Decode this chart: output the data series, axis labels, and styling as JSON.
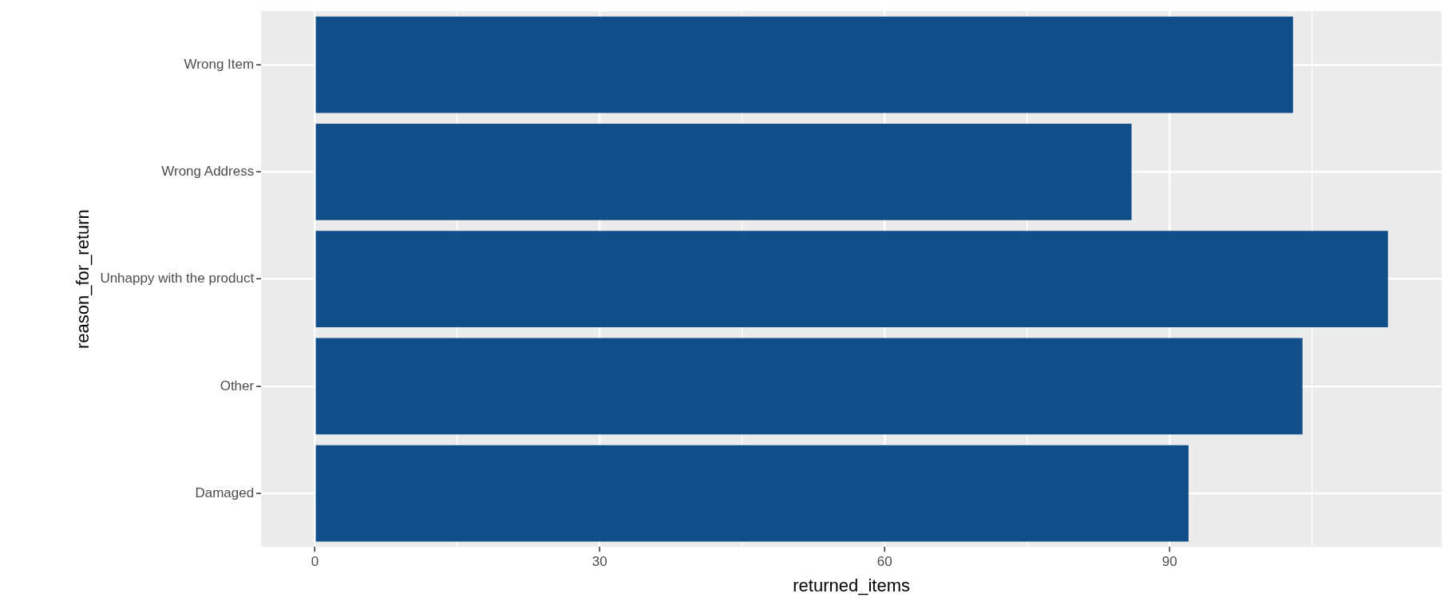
{
  "chart_data": {
    "type": "bar",
    "orientation": "horizontal",
    "xlabel": "returned_items",
    "ylabel": "reason_for_return",
    "categories": [
      "Wrong Item",
      "Wrong Address",
      "Unhappy with the product",
      "Other",
      "Damaged"
    ],
    "values": [
      103,
      86,
      113,
      104,
      92
    ],
    "color": "#114f8a",
    "xlim": [
      -5.65,
      118.65
    ],
    "xticks": [
      0,
      {
        "value": 15,
        "label": null
      },
      30,
      {
        "value": 45,
        "label": null
      },
      60,
      {
        "value": 75,
        "label": null
      },
      90,
      {
        "value": 105,
        "label": null
      }
    ],
    "grid": true,
    "legend": false
  }
}
